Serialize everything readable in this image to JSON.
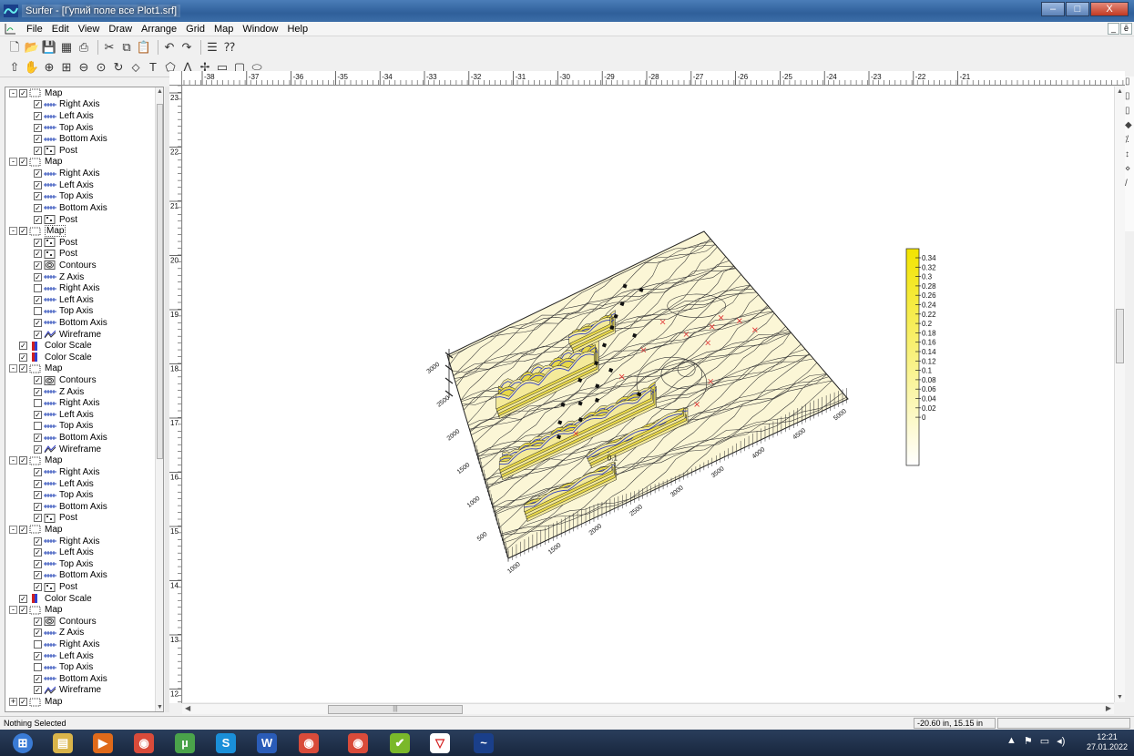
{
  "window": {
    "title": "Surfer - [Гупий поле все Plot1.srf]",
    "min_glyph": "–",
    "max_glyph": "□",
    "close_glyph": "X"
  },
  "menu": [
    "File",
    "Edit",
    "View",
    "Draw",
    "Arrange",
    "Grid",
    "Map",
    "Window",
    "Help"
  ],
  "mdi_buttons": [
    "_",
    "ē"
  ],
  "toolbar1": [
    "new-icon",
    "open-icon",
    "save-icon",
    "grid-icon",
    "print-icon",
    "sep",
    "cut-icon",
    "copy-icon",
    "paste-icon",
    "sep",
    "undo-icon",
    "redo-icon",
    "sep",
    "properties-icon",
    "help-pointer-icon"
  ],
  "toolbar2": [
    "select-arrow-icon",
    "hand-icon",
    "zoom-in-icon",
    "zoom-rect-icon",
    "zoom-out-icon",
    "zoom-page-icon",
    "rotate-icon",
    "node-icon",
    "text-icon",
    "polygon-icon",
    "polyline-icon",
    "symbol-icon",
    "rectangle-icon",
    "rounded-rect-icon",
    "ellipse-icon"
  ],
  "tree": [
    {
      "level": 0,
      "expand": "-",
      "checked": true,
      "icon": "map",
      "label": "Map"
    },
    {
      "level": 1,
      "checked": true,
      "icon": "axis",
      "label": "Right Axis"
    },
    {
      "level": 1,
      "checked": true,
      "icon": "axis",
      "label": "Left Axis"
    },
    {
      "level": 1,
      "checked": true,
      "icon": "axis",
      "label": "Top Axis"
    },
    {
      "level": 1,
      "checked": true,
      "icon": "axis",
      "label": "Bottom Axis"
    },
    {
      "level": 1,
      "checked": true,
      "icon": "post",
      "label": "Post"
    },
    {
      "level": 0,
      "expand": "-",
      "checked": true,
      "icon": "map",
      "label": "Map"
    },
    {
      "level": 1,
      "checked": true,
      "icon": "axis",
      "label": "Right Axis"
    },
    {
      "level": 1,
      "checked": true,
      "icon": "axis",
      "label": "Left Axis"
    },
    {
      "level": 1,
      "checked": true,
      "icon": "axis",
      "label": "Top Axis"
    },
    {
      "level": 1,
      "checked": true,
      "icon": "axis",
      "label": "Bottom Axis"
    },
    {
      "level": 1,
      "checked": true,
      "icon": "post",
      "label": "Post"
    },
    {
      "level": 0,
      "expand": "-",
      "checked": true,
      "icon": "map",
      "label": "Map",
      "selected": true
    },
    {
      "level": 1,
      "checked": true,
      "icon": "post",
      "label": "Post"
    },
    {
      "level": 1,
      "checked": true,
      "icon": "post",
      "label": "Post"
    },
    {
      "level": 1,
      "checked": true,
      "icon": "contours",
      "label": "Contours"
    },
    {
      "level": 1,
      "checked": true,
      "icon": "axis",
      "label": "Z Axis"
    },
    {
      "level": 1,
      "checked": false,
      "icon": "axis",
      "label": "Right Axis"
    },
    {
      "level": 1,
      "checked": true,
      "icon": "axis",
      "label": "Left Axis"
    },
    {
      "level": 1,
      "checked": false,
      "icon": "axis",
      "label": "Top Axis"
    },
    {
      "level": 1,
      "checked": true,
      "icon": "axis",
      "label": "Bottom Axis"
    },
    {
      "level": 1,
      "checked": true,
      "icon": "wireframe",
      "label": "Wireframe"
    },
    {
      "level": 0,
      "checked": true,
      "icon": "colorscale",
      "label": "Color Scale"
    },
    {
      "level": 0,
      "checked": true,
      "icon": "colorscale",
      "label": "Color Scale"
    },
    {
      "level": 0,
      "expand": "-",
      "checked": true,
      "icon": "map",
      "label": "Map"
    },
    {
      "level": 1,
      "checked": true,
      "icon": "contours",
      "label": "Contours"
    },
    {
      "level": 1,
      "checked": true,
      "icon": "axis",
      "label": "Z Axis"
    },
    {
      "level": 1,
      "checked": false,
      "icon": "axis",
      "label": "Right Axis"
    },
    {
      "level": 1,
      "checked": true,
      "icon": "axis",
      "label": "Left Axis"
    },
    {
      "level": 1,
      "checked": false,
      "icon": "axis",
      "label": "Top Axis"
    },
    {
      "level": 1,
      "checked": true,
      "icon": "axis",
      "label": "Bottom Axis"
    },
    {
      "level": 1,
      "checked": true,
      "icon": "wireframe",
      "label": "Wireframe"
    },
    {
      "level": 0,
      "expand": "-",
      "checked": true,
      "icon": "map",
      "label": "Map"
    },
    {
      "level": 1,
      "checked": true,
      "icon": "axis",
      "label": "Right Axis"
    },
    {
      "level": 1,
      "checked": true,
      "icon": "axis",
      "label": "Left Axis"
    },
    {
      "level": 1,
      "checked": true,
      "icon": "axis",
      "label": "Top Axis"
    },
    {
      "level": 1,
      "checked": true,
      "icon": "axis",
      "label": "Bottom Axis"
    },
    {
      "level": 1,
      "checked": true,
      "icon": "post",
      "label": "Post"
    },
    {
      "level": 0,
      "expand": "-",
      "checked": true,
      "icon": "map",
      "label": "Map"
    },
    {
      "level": 1,
      "checked": true,
      "icon": "axis",
      "label": "Right Axis"
    },
    {
      "level": 1,
      "checked": true,
      "icon": "axis",
      "label": "Left Axis"
    },
    {
      "level": 1,
      "checked": true,
      "icon": "axis",
      "label": "Top Axis"
    },
    {
      "level": 1,
      "checked": true,
      "icon": "axis",
      "label": "Bottom Axis"
    },
    {
      "level": 1,
      "checked": true,
      "icon": "post",
      "label": "Post"
    },
    {
      "level": 0,
      "checked": true,
      "icon": "colorscale",
      "label": "Color Scale"
    },
    {
      "level": 0,
      "expand": "-",
      "checked": true,
      "icon": "map",
      "label": "Map"
    },
    {
      "level": 1,
      "checked": true,
      "icon": "contours",
      "label": "Contours"
    },
    {
      "level": 1,
      "checked": true,
      "icon": "axis",
      "label": "Z Axis"
    },
    {
      "level": 1,
      "checked": false,
      "icon": "axis",
      "label": "Right Axis"
    },
    {
      "level": 1,
      "checked": true,
      "icon": "axis",
      "label": "Left Axis"
    },
    {
      "level": 1,
      "checked": false,
      "icon": "axis",
      "label": "Top Axis"
    },
    {
      "level": 1,
      "checked": true,
      "icon": "axis",
      "label": "Bottom Axis"
    },
    {
      "level": 1,
      "checked": true,
      "icon": "wireframe",
      "label": "Wireframe"
    },
    {
      "level": 0,
      "expand": "+",
      "checked": true,
      "icon": "map",
      "label": "Map"
    }
  ],
  "ruler": {
    "horizontal": [
      "-38",
      "-37",
      "-36",
      "-35",
      "-34",
      "-33",
      "-32",
      "-31",
      "-30",
      "-29",
      "-28",
      "-27",
      "-26",
      "-25",
      "-24",
      "-23",
      "-22",
      "-21"
    ],
    "vertical": [
      "23",
      "22",
      "21",
      "20",
      "19",
      "18",
      "17",
      "16",
      "15",
      "14",
      "13",
      "12"
    ]
  },
  "color_scale": {
    "labels": [
      "0.34",
      "0.32",
      "0.3",
      "0.28",
      "0.26",
      "0.24",
      "0.22",
      "0.2",
      "0.18",
      "0.16",
      "0.14",
      "0.12",
      "0.1",
      "0.08",
      "0.06",
      "0.04",
      "0.02",
      "0"
    ],
    "top_color": "#f2e400",
    "bottom_color": "#ffffff"
  },
  "map3d": {
    "left_axis_labels": [
      "500",
      "1000",
      "1500",
      "2000",
      "2500",
      "3000"
    ],
    "front_axis_labels": [
      "1000",
      "1500",
      "2000",
      "2500",
      "3000",
      "3500",
      "4000",
      "4500",
      "5000"
    ],
    "contour_label": "0.1",
    "surface_color": "#fbf6d6",
    "peak_color": "#e8d84a",
    "wire_color": "#3340c8",
    "post_marker_color": "#e03030"
  },
  "status": {
    "left": "Nothing Selected",
    "coords": "-20.60 in, 15.15 in"
  },
  "taskbar": {
    "apps": [
      "start",
      "explorer",
      "media",
      "chrome",
      "utorrent",
      "skype",
      "word",
      "chrome2",
      "chrome3",
      "app-green",
      "app-shield",
      "surfer"
    ],
    "time": "12:21",
    "date": "27.01.2022"
  }
}
